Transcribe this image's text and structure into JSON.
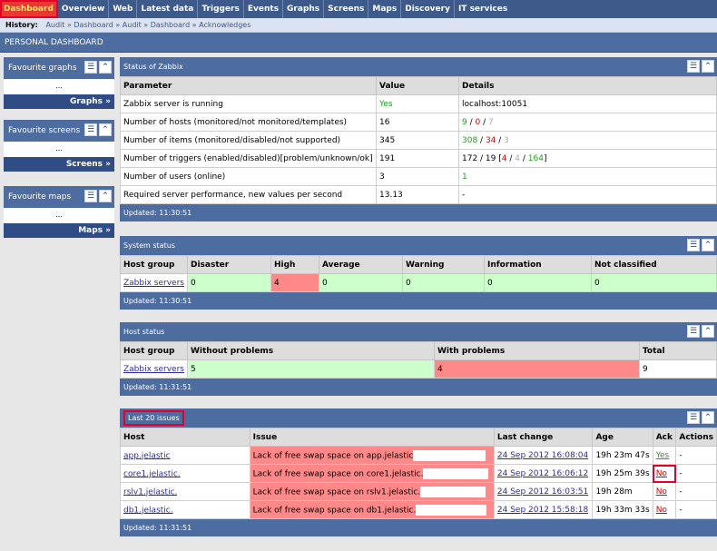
{
  "menu": [
    "Dashboard",
    "Overview",
    "Web",
    "Latest data",
    "Triggers",
    "Events",
    "Graphs",
    "Screens",
    "Maps",
    "Discovery",
    "IT services"
  ],
  "history": {
    "label": "History:",
    "value": "Audit » Dashboard » Audit » Dashboard » Acknowledges"
  },
  "page_title": "PERSONAL DASHBOARD",
  "left": {
    "graphs": {
      "title": "Favourite graphs",
      "body": "...",
      "link": "Graphs »"
    },
    "screens": {
      "title": "Favourite screens",
      "body": "...",
      "link": "Screens »"
    },
    "maps": {
      "title": "Favourite maps",
      "body": "...",
      "link": "Maps »"
    }
  },
  "status": {
    "title": "Status of Zabbix",
    "headers": [
      "Parameter",
      "Value",
      "Details"
    ],
    "rows": [
      {
        "p": "Zabbix server is running",
        "v": "Yes",
        "d": "localhost:10051"
      },
      {
        "p": "Number of hosts (monitored/not monitored/templates)",
        "v": "16",
        "d1": "9",
        "d2": "0",
        "d3": "7"
      },
      {
        "p": "Number of items (monitored/disabled/not supported)",
        "v": "345",
        "d1": "308",
        "d2": "34",
        "d3": "3"
      },
      {
        "p": "Number of triggers (enabled/disabled)[problem/unknown/ok]",
        "v": "191",
        "d0": "172 / 19",
        "d1": "4",
        "d2": "4",
        "d3": "164"
      },
      {
        "p": "Number of users (online)",
        "v": "3",
        "d": "1"
      },
      {
        "p": "Required server performance, new values per second",
        "v": "13.13",
        "d": "-"
      }
    ],
    "updated": "Updated: 11:30:51"
  },
  "system": {
    "title": "System status",
    "headers": [
      "Host group",
      "Disaster",
      "High",
      "Average",
      "Warning",
      "Information",
      "Not classified"
    ],
    "row": [
      "Zabbix servers",
      "0",
      "4",
      "0",
      "0",
      "0",
      "0"
    ],
    "updated": "Updated: 11:30:51"
  },
  "hoststatus": {
    "title": "Host status",
    "headers": [
      "Host group",
      "Without problems",
      "With problems",
      "Total"
    ],
    "row": [
      "Zabbix servers",
      "5",
      "4",
      "9"
    ],
    "updated": "Updated: 11:31:51"
  },
  "issues": {
    "title": "Last 20 issues",
    "headers": [
      "Host",
      "Issue",
      "Last change",
      "Age",
      "Ack",
      "Actions"
    ],
    "rows": [
      {
        "host": "app.jelastic",
        "issue": "Lack of free swap space on app.jelastic",
        "change": "24 Sep 2012 16:08:04",
        "age": "19h 23m 47s",
        "ack": "Yes",
        "act": "-"
      },
      {
        "host": "core1.jelastic.",
        "issue": "Lack of free swap space on core1.jelastic.",
        "change": "24 Sep 2012 16:06:12",
        "age": "19h 25m 39s",
        "ack": "No",
        "act": "-"
      },
      {
        "host": "rslv1.jelastic.",
        "issue": "Lack of free swap space on rslv1.jelastic.",
        "change": "24 Sep 2012 16:03:51",
        "age": "19h 28m",
        "ack": "No",
        "act": "-"
      },
      {
        "host": "db1.jelastic.",
        "issue": "Lack of free swap space on db1.jelastic.",
        "change": "24 Sep 2012 15:58:18",
        "age": "19h 33m 33s",
        "ack": "No",
        "act": "-"
      }
    ],
    "updated": "Updated: 11:31:51"
  }
}
